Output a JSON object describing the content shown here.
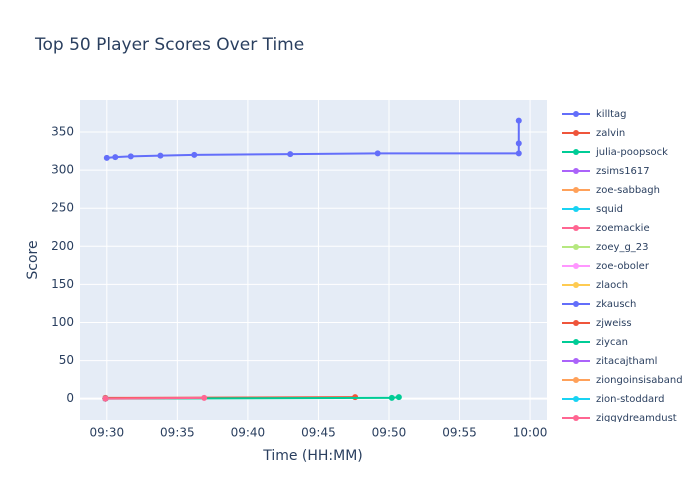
{
  "chart_data": {
    "type": "line",
    "title": "Top 50 Player Scores Over Time",
    "x_label": "Time (HH:MM)",
    "y_label": "Score",
    "xlim": [
      568.1,
      601.2
    ],
    "ylim": [
      -28,
      392
    ],
    "xticks": [
      {
        "value": 570,
        "label": "09:30"
      },
      {
        "value": 575,
        "label": "09:35"
      },
      {
        "value": 580,
        "label": "09:40"
      },
      {
        "value": 585,
        "label": "09:45"
      },
      {
        "value": 590,
        "label": "09:50"
      },
      {
        "value": 595,
        "label": "09:55"
      },
      {
        "value": 600,
        "label": "10:00"
      }
    ],
    "yticks": [
      0,
      50,
      100,
      150,
      200,
      250,
      300,
      350
    ],
    "grid": true,
    "series": [
      {
        "name": "killtag",
        "color": "#636efa",
        "x": [
          570.0,
          570.6,
          571.7,
          573.8,
          576.2,
          583.0,
          589.2,
          599.2,
          599.2,
          599.2
        ],
        "values": [
          316,
          317,
          318,
          319,
          320,
          321,
          322,
          322,
          335,
          365
        ]
      },
      {
        "name": "zalvin",
        "color": "#ef553b",
        "x": [
          569.9,
          587.6
        ],
        "values": [
          1,
          2
        ]
      },
      {
        "name": "julia-poopsock",
        "color": "#00cc96",
        "x": [
          569.9,
          590.2,
          590.7
        ],
        "values": [
          0,
          1,
          2
        ]
      },
      {
        "name": "zsims1617",
        "color": "#ab63fa",
        "x": [
          569.9
        ],
        "values": [
          0
        ]
      },
      {
        "name": "zoe-sabbagh",
        "color": "#ffa15a",
        "x": [
          569.9
        ],
        "values": [
          0
        ]
      },
      {
        "name": "squid",
        "color": "#19d3f3",
        "x": [
          569.9
        ],
        "values": [
          0
        ]
      },
      {
        "name": "zoemackie",
        "color": "#ff6692",
        "x": [
          569.9,
          576.9
        ],
        "values": [
          0,
          1
        ]
      },
      {
        "name": "zoey_g_23",
        "color": "#b6e880",
        "x": [
          569.9
        ],
        "values": [
          0
        ]
      },
      {
        "name": "zoe-oboler",
        "color": "#ff97ff",
        "x": [
          569.9
        ],
        "values": [
          0
        ]
      },
      {
        "name": "zlaoch",
        "color": "#fecb52",
        "x": [
          569.9
        ],
        "values": [
          0
        ]
      },
      {
        "name": "zkausch",
        "color": "#636efa",
        "x": [
          569.9
        ],
        "values": [
          0
        ]
      },
      {
        "name": "zjweiss",
        "color": "#ef553b",
        "x": [
          569.9
        ],
        "values": [
          0
        ]
      },
      {
        "name": "ziycan",
        "color": "#00cc96",
        "x": [
          569.9
        ],
        "values": [
          0
        ]
      },
      {
        "name": "zitacajthaml",
        "color": "#ab63fa",
        "x": [
          569.9
        ],
        "values": [
          0
        ]
      },
      {
        "name": "ziongoinsisaband",
        "color": "#ffa15a",
        "x": [
          569.9
        ],
        "values": [
          0
        ]
      },
      {
        "name": "zion-stoddard",
        "color": "#19d3f3",
        "x": [
          569.9
        ],
        "values": [
          0
        ]
      },
      {
        "name": "ziggydreamdust",
        "color": "#ff6692",
        "x": [
          569.9
        ],
        "values": [
          0
        ]
      }
    ]
  }
}
